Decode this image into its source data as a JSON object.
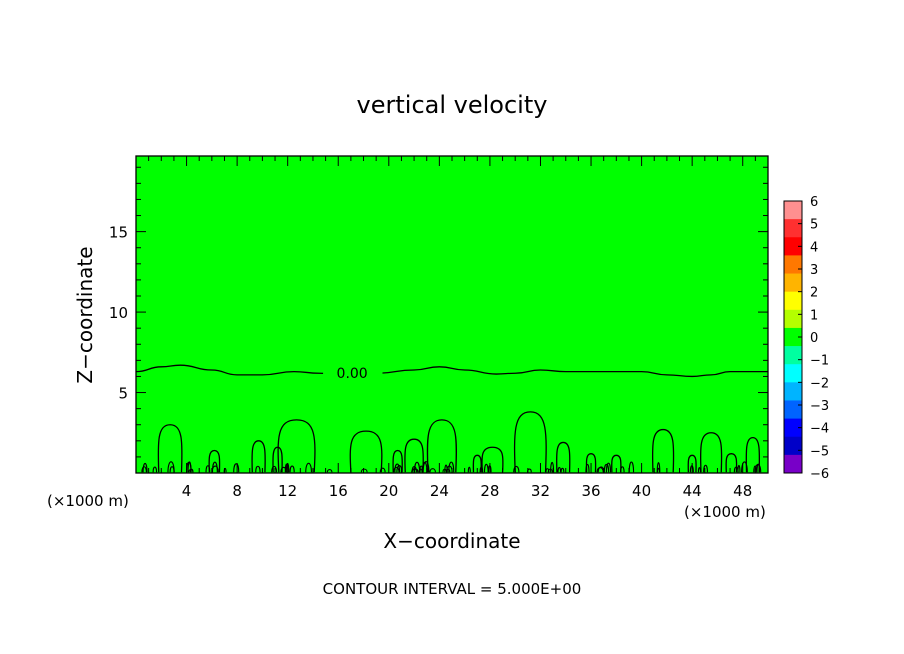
{
  "chart_data": {
    "type": "contour",
    "title": "vertical velocity",
    "xlabel": "X−coordinate",
    "ylabel": "Z−coordinate",
    "x_unit_left": "(×1000 m)",
    "x_unit_right": "(×1000 m)",
    "x_ticks": [
      "4",
      "8",
      "12",
      "16",
      "20",
      "24",
      "28",
      "32",
      "36",
      "40",
      "44",
      "48"
    ],
    "y_ticks": [
      "5",
      "10",
      "15"
    ],
    "xlim": [
      0,
      50
    ],
    "ylim": [
      0,
      19.7
    ],
    "background_level": 0,
    "zero_contour_label": "0.00",
    "zero_contour_height": [
      [
        0,
        6.3
      ],
      [
        2,
        6.6
      ],
      [
        3.5,
        6.7
      ],
      [
        6,
        6.4
      ],
      [
        8,
        6.1
      ],
      [
        10,
        6.1
      ],
      [
        12.5,
        6.3
      ],
      [
        14.5,
        6.2
      ],
      [
        16,
        6.15
      ],
      [
        19,
        6.2
      ],
      [
        22,
        6.4
      ],
      [
        24,
        6.6
      ],
      [
        26,
        6.4
      ],
      [
        28.5,
        6.15
      ],
      [
        30,
        6.2
      ],
      [
        32,
        6.4
      ],
      [
        34,
        6.3
      ],
      [
        38,
        6.3
      ],
      [
        40,
        6.3
      ],
      [
        42,
        6.1
      ],
      [
        44,
        6.0
      ],
      [
        45.5,
        6.1
      ],
      [
        47,
        6.3
      ],
      [
        50,
        6.3
      ]
    ],
    "plumes": [
      {
        "x": 2.7,
        "top": 3.0,
        "width": 1.8
      },
      {
        "x": 9.7,
        "top": 2.0,
        "width": 1.0
      },
      {
        "x": 12.7,
        "top": 3.3,
        "width": 2.8
      },
      {
        "x": 18.2,
        "top": 2.6,
        "width": 2.4
      },
      {
        "x": 22.0,
        "top": 2.1,
        "width": 1.4
      },
      {
        "x": 24.2,
        "top": 3.3,
        "width": 2.2
      },
      {
        "x": 28.2,
        "top": 1.6,
        "width": 1.6
      },
      {
        "x": 31.2,
        "top": 3.8,
        "width": 2.4
      },
      {
        "x": 33.8,
        "top": 1.9,
        "width": 1.0
      },
      {
        "x": 41.7,
        "top": 2.7,
        "width": 1.6
      },
      {
        "x": 45.5,
        "top": 2.5,
        "width": 1.6
      },
      {
        "x": 48.8,
        "top": 2.2,
        "width": 1.0
      },
      {
        "x": 6.2,
        "top": 1.4,
        "width": 0.8
      },
      {
        "x": 11.2,
        "top": 1.6,
        "width": 0.7
      },
      {
        "x": 20.7,
        "top": 1.4,
        "width": 0.7
      },
      {
        "x": 27.0,
        "top": 1.1,
        "width": 0.6
      },
      {
        "x": 36.0,
        "top": 1.2,
        "width": 0.7
      },
      {
        "x": 38.0,
        "top": 1.1,
        "width": 0.7
      },
      {
        "x": 44.0,
        "top": 1.1,
        "width": 0.6
      },
      {
        "x": 47.1,
        "top": 1.2,
        "width": 0.8
      }
    ],
    "colorbar": {
      "levels": [
        "6",
        "5",
        "4",
        "3",
        "2",
        "1",
        "0",
        "−1",
        "−2",
        "−3",
        "−4",
        "−5",
        "−6"
      ],
      "colors": [
        "#ff9090",
        "#ff3030",
        "#ff0000",
        "#ff7800",
        "#ffb400",
        "#ffff00",
        "#b4ff00",
        "#00ff00",
        "#00ffa0",
        "#00ffff",
        "#00b4ff",
        "#0064ff",
        "#0000ff",
        "#0000c8",
        "#7800c8"
      ]
    },
    "fill_color": "#00ff00",
    "footer": "CONTOUR INTERVAL = 5.000E+00"
  }
}
